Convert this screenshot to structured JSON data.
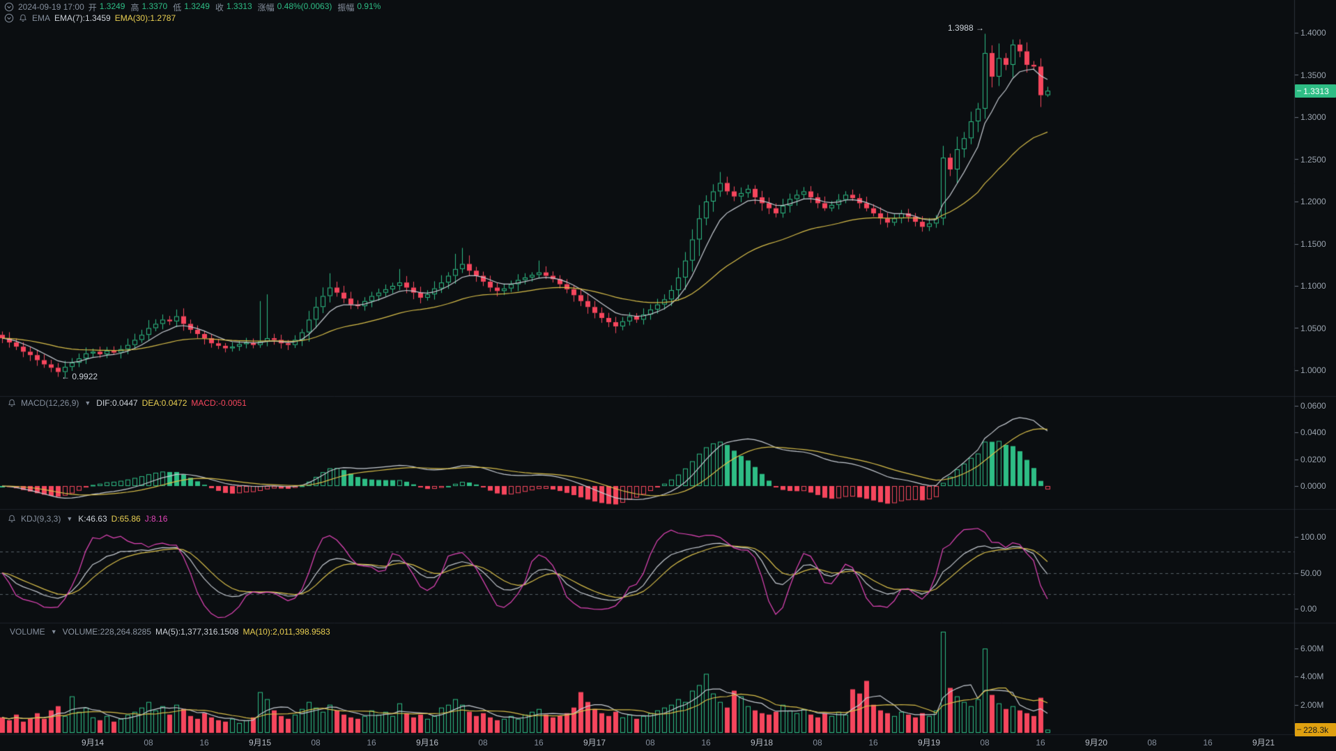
{
  "app": {
    "type": "crypto-candlestick-trading-chart",
    "colors": {
      "background": "#0b0e11",
      "up_green": "#2ebd85",
      "down_red": "#f6465d",
      "line_white": "#c5cad1",
      "line_yellow": "#d8be4a",
      "line_magenta": "#e245b8",
      "text_dim": "#848e9c",
      "axis_text": "#9aa3ae",
      "price_badge_bg": "#2ebd85",
      "volume_badge_bg": "#dfa010",
      "divider": "#1e232a",
      "kdj_dash": "#565e66"
    }
  },
  "header": {
    "row1": {
      "timestamp": "2024-09-19 17:00",
      "fields": [
        {
          "label": "开",
          "value": "1.3249"
        },
        {
          "label": "高",
          "value": "1.3370"
        },
        {
          "label": "低",
          "value": "1.3249"
        },
        {
          "label": "收",
          "value": "1.3313"
        },
        {
          "label": "涨幅",
          "value": "0.48%(0.0063)"
        },
        {
          "label": "振幅",
          "value": "0.91%"
        }
      ]
    },
    "row2": {
      "name": "EMA",
      "ema7": "EMA(7):1.3459",
      "ema30": "EMA(30):1.2787"
    }
  },
  "panels": {
    "macd": {
      "title": "MACD(12,26,9)",
      "dif": "DIF:0.0447",
      "dea": "DEA:0.0472",
      "macd": "MACD:-0.0051",
      "axis": [
        "0.0600",
        "0.0400",
        "0.0200",
        "0.0000"
      ]
    },
    "kdj": {
      "title": "KDJ(9,3,3)",
      "k": "K:46.63",
      "d": "D:65.86",
      "j": "J:8.16",
      "axis": [
        "100.00",
        "50.00",
        "0.00"
      ]
    },
    "volume": {
      "title": "VOLUME",
      "volume": "VOLUME:228,264.8285",
      "ma5": "MA(5):1,377,316.1508",
      "ma10": "MA(10):2,011,398.9583",
      "axis": [
        "6.00M",
        "4.00M",
        "2.00M"
      ],
      "badge": "228.3k"
    }
  },
  "price_axis": {
    "labels": [
      "1.4000",
      "1.3500",
      "1.3000",
      "1.2500",
      "1.2000",
      "1.1500",
      "1.1000",
      "1.0500",
      "1.0000"
    ],
    "last_price_badge": "1.3313"
  },
  "time_axis": {
    "labels": [
      "9月14",
      "08",
      "16",
      "9月15",
      "08",
      "16",
      "9月16",
      "08",
      "16",
      "9月17",
      "08",
      "16",
      "9月18",
      "08",
      "16",
      "9月19",
      "08",
      "16",
      "9月20",
      "08",
      "16",
      "9月21"
    ]
  },
  "annotations": {
    "high_label": "1.3988 →",
    "low_label": "← 0.9922"
  },
  "chart_data": {
    "type": "candlestick-multi-panel",
    "interval": "1h",
    "panel_list": [
      "price+EMA(7)+EMA(30)",
      "MACD(12,26,9)",
      "KDJ(9,3,3)",
      "VOLUME+MA(5)+MA(10)"
    ],
    "marked_high": 1.3988,
    "marked_low": 0.9922,
    "last_close": 1.3313,
    "last_volume": 228264.8285,
    "open_first": 1.042,
    "price_axis_ticks": [
      1.4,
      1.35,
      1.3,
      1.25,
      1.2,
      1.15,
      1.1,
      1.05,
      1.0
    ],
    "macd_axis_ticks": [
      0.06,
      0.04,
      0.02,
      0.0
    ],
    "kdj_axis_ticks": [
      100,
      50,
      0
    ],
    "kdj_dashed_levels": [
      80,
      50,
      20
    ],
    "volume_axis_ticks_m": [
      6,
      4,
      2
    ],
    "closes": [
      1.038,
      1.033,
      1.028,
      1.022,
      1.018,
      1.012,
      1.007,
      1.003,
      0.998,
      1.004,
      1.009,
      1.014,
      1.02,
      1.022,
      1.019,
      1.023,
      1.021,
      1.025,
      1.03,
      1.036,
      1.042,
      1.05,
      1.055,
      1.06,
      1.058,
      1.064,
      1.055,
      1.048,
      1.043,
      1.038,
      1.032,
      1.029,
      1.026,
      1.028,
      1.031,
      1.033,
      1.03,
      1.034,
      1.038,
      1.036,
      1.032,
      1.03,
      1.036,
      1.045,
      1.06,
      1.075,
      1.088,
      1.098,
      1.092,
      1.085,
      1.078,
      1.076,
      1.082,
      1.088,
      1.092,
      1.096,
      1.1,
      1.104,
      1.098,
      1.092,
      1.086,
      1.09,
      1.097,
      1.104,
      1.112,
      1.12,
      1.126,
      1.118,
      1.112,
      1.105,
      1.098,
      1.094,
      1.097,
      1.102,
      1.107,
      1.11,
      1.113,
      1.116,
      1.112,
      1.108,
      1.102,
      1.096,
      1.089,
      1.082,
      1.075,
      1.068,
      1.062,
      1.057,
      1.052,
      1.058,
      1.064,
      1.06,
      1.066,
      1.072,
      1.078,
      1.084,
      1.095,
      1.11,
      1.13,
      1.155,
      1.18,
      1.2,
      1.212,
      1.222,
      1.212,
      1.206,
      1.21,
      1.215,
      1.205,
      1.198,
      1.192,
      1.186,
      1.195,
      1.203,
      1.208,
      1.212,
      1.205,
      1.198,
      1.192,
      1.196,
      1.202,
      1.208,
      1.204,
      1.198,
      1.192,
      1.186,
      1.18,
      1.175,
      1.18,
      1.186,
      1.182,
      1.176,
      1.17,
      1.174,
      1.18,
      1.252,
      1.238,
      1.262,
      1.275,
      1.295,
      1.31,
      1.376,
      1.348,
      1.37,
      1.362,
      1.386,
      1.378,
      1.362,
      1.36,
      1.326,
      1.3313
    ],
    "volumes_m": [
      1.1,
      0.9,
      1.3,
      0.8,
      1.0,
      1.4,
      1.0,
      1.6,
      1.9,
      1.2,
      2.6,
      1.5,
      1.8,
      1.1,
      0.9,
      1.2,
      0.8,
      1.0,
      1.3,
      1.5,
      1.8,
      2.2,
      1.6,
      1.9,
      1.3,
      2.0,
      1.7,
      1.2,
      1.0,
      1.4,
      1.1,
      0.9,
      0.8,
      1.0,
      0.7,
      0.9,
      1.1,
      2.9,
      2.4,
      1.6,
      1.2,
      1.0,
      1.3,
      1.7,
      2.2,
      1.8,
      1.5,
      2.0,
      1.6,
      1.3,
      1.1,
      1.0,
      1.2,
      1.6,
      1.3,
      1.5,
      1.2,
      2.1,
      1.4,
      1.1,
      1.3,
      1.0,
      1.2,
      1.8,
      2.0,
      2.4,
      2.0,
      1.5,
      1.2,
      1.4,
      1.1,
      0.9,
      1.0,
      1.2,
      1.0,
      1.3,
      1.5,
      1.7,
      1.3,
      1.1,
      1.2,
      1.4,
      1.8,
      2.9,
      2.2,
      1.7,
      1.4,
      1.2,
      1.5,
      1.1,
      1.3,
      1.0,
      1.2,
      1.4,
      1.6,
      1.8,
      2.0,
      2.4,
      2.2,
      3.0,
      3.4,
      4.2,
      2.8,
      2.2,
      1.8,
      3.0,
      2.6,
      1.9,
      1.6,
      1.4,
      1.3,
      1.5,
      2.0,
      1.6,
      1.4,
      1.7,
      1.3,
      1.1,
      1.4,
      1.2,
      1.5,
      1.3,
      3.1,
      2.8,
      3.7,
      2.0,
      1.6,
      1.4,
      1.2,
      1.5,
      1.3,
      1.1,
      1.4,
      1.2,
      1.6,
      7.2,
      3.2,
      2.6,
      2.2,
      1.9,
      2.4,
      6.0,
      2.7,
      2.1,
      1.7,
      1.9,
      1.6,
      1.4,
      1.2,
      2.5,
      0.228
    ],
    "wick_overrides": {
      "8": [
        null,
        0.9922
      ],
      "25": [
        1.072,
        null
      ],
      "37": [
        1.082,
        null
      ],
      "38": [
        1.09,
        null
      ],
      "47": [
        1.115,
        null
      ],
      "57": [
        1.12,
        null
      ],
      "65": [
        1.138,
        null
      ],
      "66": [
        1.145,
        null
      ],
      "77": [
        1.13,
        null
      ],
      "88": [
        null,
        1.044
      ],
      "103": [
        1.235,
        null
      ],
      "135": [
        null,
        1.172
      ],
      "141": [
        1.3988,
        1.298
      ],
      "145": [
        1.392,
        null
      ],
      "149": [
        null,
        1.312
      ],
      "150": [
        1.336,
        1.324
      ]
    }
  }
}
